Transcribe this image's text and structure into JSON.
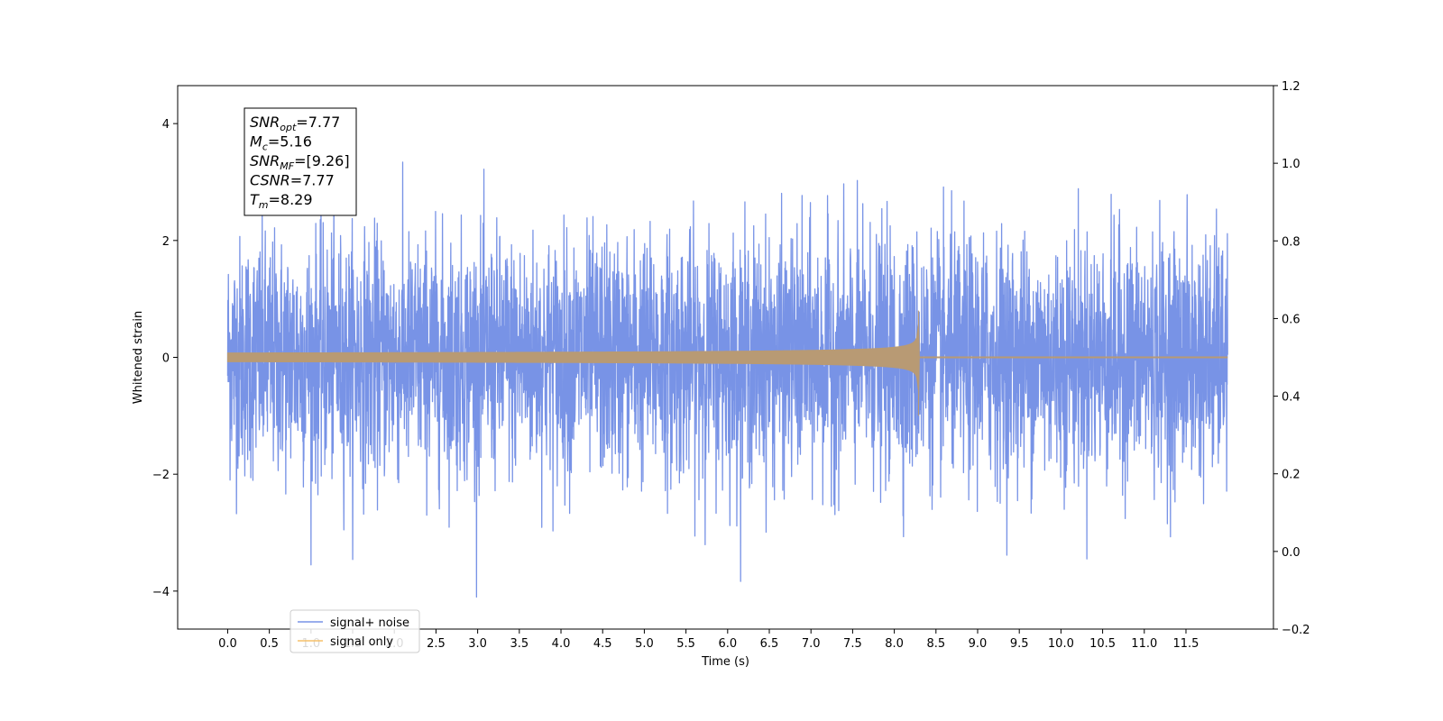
{
  "chart_data": {
    "type": "line",
    "xlabel": "Time (s)",
    "ylabel": "Whitened strain",
    "xlim": [
      -0.6,
      12.55
    ],
    "ylim": [
      -4.65,
      4.65
    ],
    "y2lim": [
      -0.2,
      1.2
    ],
    "xticks": [
      "0.0",
      "0.5",
      "1.0",
      "1.5",
      "2.0",
      "2.5",
      "3.0",
      "3.5",
      "4.0",
      "4.5",
      "5.0",
      "5.5",
      "6.0",
      "6.5",
      "7.0",
      "7.5",
      "8.0",
      "8.5",
      "9.0",
      "9.5",
      "10.0",
      "10.5",
      "11.0",
      "11.5"
    ],
    "yticks": [
      "4",
      "2",
      "0",
      "−2",
      "−4"
    ],
    "y2ticks": [
      "1.2",
      "1.0",
      "0.8",
      "0.6",
      "0.4",
      "0.2",
      "0.0",
      "−0.2"
    ],
    "grid": false,
    "legend_location": "lower-left",
    "series": [
      {
        "name": "signal+ noise",
        "color": "#7893e6",
        "description_values": {
          "x_start": 0.0,
          "x_end": 12.0,
          "mean": 0.0,
          "std": 1.0,
          "peak_max": 4.2,
          "peak_min": -4.2
        }
      },
      {
        "name": "signal only",
        "color": "#f5c06a",
        "description_values": {
          "x_start": 0.0,
          "x_end": 12.0,
          "merger_time": 8.29,
          "peak_amplitude": 0.8,
          "trough_amplitude": -1.0
        }
      }
    ],
    "annotation": {
      "lines": [
        {
          "main": "SNR",
          "sub": "opt",
          "value": "=7.77"
        },
        {
          "main": "M",
          "sub": "c",
          "value": "=5.16"
        },
        {
          "main": "SNR",
          "sub": "MF",
          "value": "=[9.26]"
        },
        {
          "main": "CSNR",
          "sub": "",
          "value": "=7.77"
        },
        {
          "main": "T",
          "sub": "m",
          "value": "=8.29"
        }
      ]
    },
    "overlap_color": "#b89a74"
  }
}
